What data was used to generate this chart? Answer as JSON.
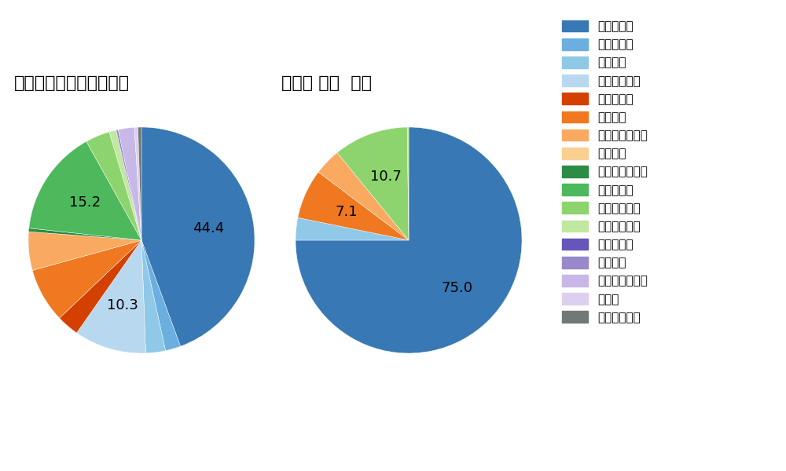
{
  "left_title": "セ・リーグ全プレイヤー",
  "right_title": "大瀬良 大地  選手",
  "background_color": "#ffffff",
  "pitch_types": [
    "ストレート",
    "ツーシーム",
    "シュート",
    "カットボール",
    "スプリット",
    "フォーク",
    "チェンジアップ",
    "シンカー",
    "高速スライダー",
    "スライダー",
    "縦スライダー",
    "パワーカーブ",
    "スクリュー",
    "ナックル",
    "ナックルカーブ",
    "カーブ",
    "スローカーブ"
  ],
  "colors": [
    "#3878b4",
    "#6aafe0",
    "#90c8e8",
    "#b8d8f0",
    "#d44000",
    "#f07820",
    "#f9aa60",
    "#fad090",
    "#2e8b44",
    "#4db85c",
    "#8ed46e",
    "#c0e8a0",
    "#6655bb",
    "#9988cc",
    "#c8b8e8",
    "#ddd0ee",
    "#707878"
  ],
  "left_values": [
    44.4,
    2.2,
    2.8,
    10.3,
    3.2,
    7.8,
    5.5,
    0.0,
    0.5,
    15.2,
    3.5,
    1.0,
    0.0,
    0.3,
    2.3,
    0.5,
    0.5
  ],
  "left_show": [
    44.4,
    0,
    0,
    10.3,
    0,
    0,
    0,
    0,
    0,
    15.2,
    0,
    0,
    0,
    0,
    0,
    0,
    0
  ],
  "right_values": [
    75.0,
    0.0,
    3.2,
    0.0,
    0.0,
    7.1,
    3.8,
    0.0,
    0.0,
    0.0,
    10.7,
    0.2,
    0.0,
    0.0,
    0.0,
    0.0,
    0.0
  ],
  "right_show": [
    75.0,
    0,
    0,
    0,
    0,
    7.1,
    0,
    0,
    0,
    0,
    10.7,
    0,
    0,
    0,
    0,
    0,
    0
  ],
  "font_size_title": 16,
  "font_size_label": 12,
  "font_size_legend": 11
}
